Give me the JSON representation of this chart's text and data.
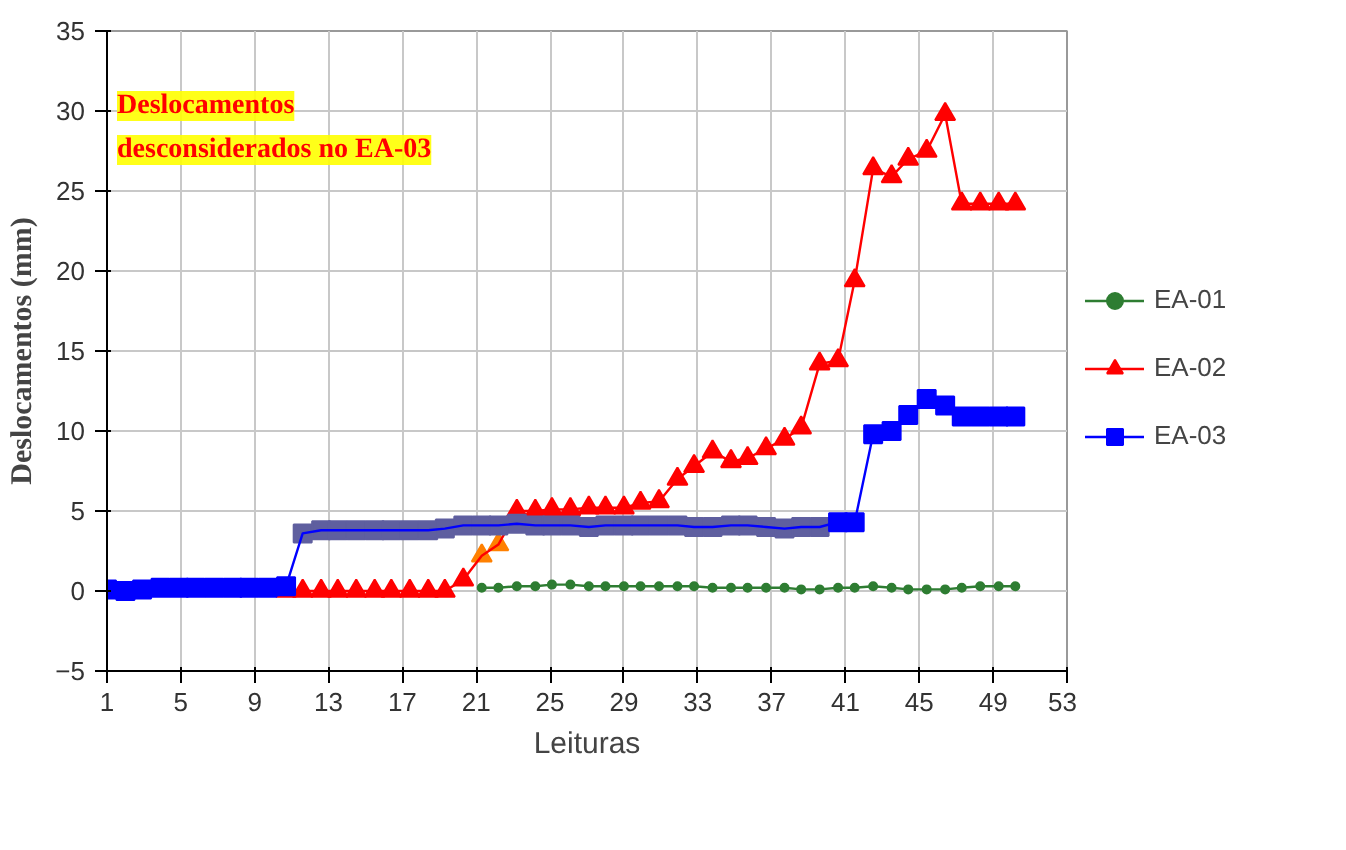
{
  "chart_data": {
    "type": "line",
    "xlabel": "Leituras",
    "ylabel": "Deslocamentos (mm)",
    "annotations": [
      "Deslocamentos desconsiderados no EA-03"
    ],
    "x": [
      1,
      2,
      2.9,
      3.9,
      4.9,
      5.8,
      6.8,
      7.8,
      8.7,
      9.7,
      10.7,
      11.6,
      12.6,
      13.5,
      14.5,
      15.5,
      16.4,
      17.4,
      18.4,
      19.3,
      20.3,
      21.3,
      22.2,
      23.2,
      24.2,
      25.1,
      26.1,
      27.1,
      28,
      29,
      29.9,
      30.9,
      31.9,
      32.8,
      33.8,
      34.8,
      35.7,
      36.7,
      37.7,
      38.6,
      39.6,
      40.6,
      41.5,
      42.5,
      43.5,
      44.4,
      45.4,
      46.4,
      47.3,
      48.3,
      49.3,
      50.2
    ],
    "series": [
      {
        "name": "EA-01",
        "color": "#2e7d32",
        "marker": "circle",
        "values": [
          null,
          null,
          null,
          null,
          null,
          null,
          null,
          null,
          null,
          null,
          null,
          null,
          null,
          null,
          null,
          null,
          null,
          null,
          null,
          null,
          null,
          0.2,
          0.2,
          0.3,
          0.3,
          0.4,
          0.4,
          0.3,
          0.3,
          0.3,
          0.3,
          0.3,
          0.3,
          0.3,
          0.2,
          0.2,
          0.2,
          0.2,
          0.2,
          0.1,
          0.1,
          0.2,
          0.2,
          0.3,
          0.2,
          0.1,
          0.1,
          0.1,
          0.2,
          0.3,
          0.3,
          0.3
        ]
      },
      {
        "name": "EA-02",
        "color": "#ff0000",
        "marker": "triangle",
        "colors": [
          "#ff0000",
          "#ff0000",
          "#ff0000",
          "#ff0000",
          "#ff0000",
          "#ff0000",
          "#ff0000",
          "#ff0000",
          "#ff0000",
          "#ff0000",
          "#ff0000",
          "#ff0000",
          "#ff0000",
          "#ff0000",
          "#ff0000",
          "#ff0000",
          "#ff0000",
          "#ff0000",
          "#ff0000",
          "#ff0000",
          "#ff0000",
          "#ff8000",
          "#ff8000",
          "#ff0000",
          "#ff0000",
          "#ff0000",
          "#ff0000",
          "#ff0000",
          "#ff0000",
          "#ff0000",
          "#ff0000",
          "#ff0000",
          "#ff0000",
          "#ff0000",
          "#ff0000",
          "#ff0000",
          "#ff0000",
          "#ff0000",
          "#ff0000",
          "#ff0000",
          "#ff0000",
          "#ff0000",
          "#ff0000",
          "#ff0000",
          "#ff0000",
          "#ff0000",
          "#ff0000",
          "#ff0000",
          "#ff0000",
          "#ff0000",
          "#ff0000",
          "#ff0000"
        ],
        "values": [
          null,
          null,
          null,
          null,
          null,
          null,
          null,
          null,
          null,
          null,
          0,
          0,
          0,
          0,
          0,
          0,
          0,
          0,
          0,
          0,
          0.7,
          2.2,
          2.9,
          5.0,
          5.0,
          5.1,
          5.1,
          5.2,
          5.2,
          5.2,
          5.5,
          5.6,
          7.0,
          7.8,
          8.7,
          8.1,
          8.3,
          8.9,
          9.5,
          10.2,
          14.2,
          14.4,
          19.4,
          26.4,
          25.9,
          27.0,
          27.5,
          29.8,
          24.2,
          24.2,
          24.2,
          24.2
        ]
      },
      {
        "name": "EA-03",
        "color": "#0000ff",
        "marker": "square",
        "colors": [
          "#0000ff",
          "#0000ff",
          "#0000ff",
          "#0000ff",
          "#0000ff",
          "#0000ff",
          "#0000ff",
          "#0000ff",
          "#0000ff",
          "#0000ff",
          "#0000ff",
          "#5f5f9f",
          "#5f5f9f",
          "#5f5f9f",
          "#5f5f9f",
          "#5f5f9f",
          "#5f5f9f",
          "#5f5f9f",
          "#5f5f9f",
          "#5f5f9f",
          "#5f5f9f",
          "#5f5f9f",
          "#5f5f9f",
          "#5f5f9f",
          "#5f5f9f",
          "#5f5f9f",
          "#5f5f9f",
          "#5f5f9f",
          "#5f5f9f",
          "#5f5f9f",
          "#5f5f9f",
          "#5f5f9f",
          "#5f5f9f",
          "#5f5f9f",
          "#5f5f9f",
          "#5f5f9f",
          "#5f5f9f",
          "#5f5f9f",
          "#5f5f9f",
          "#5f5f9f",
          "#5f5f9f",
          "#0000ff",
          "#0000ff",
          "#0000ff",
          "#0000ff",
          "#0000ff",
          "#0000ff",
          "#0000ff",
          "#0000ff",
          "#0000ff",
          "#0000ff",
          "#0000ff"
        ],
        "values": [
          0.1,
          0,
          0.1,
          0.2,
          0.2,
          0.2,
          0.2,
          0.2,
          0.2,
          0.2,
          0.3,
          3.6,
          3.8,
          3.8,
          3.8,
          3.8,
          3.8,
          3.8,
          3.8,
          3.9,
          4.1,
          4.1,
          4.1,
          4.2,
          4.1,
          4.1,
          4.1,
          4.0,
          4.1,
          4.1,
          4.1,
          4.1,
          4.1,
          4.0,
          4.0,
          4.1,
          4.1,
          4.0,
          3.9,
          4.0,
          4.0,
          4.3,
          4.3,
          9.8,
          10.0,
          11.0,
          12.0,
          11.6,
          10.9,
          10.9,
          10.9,
          10.9
        ]
      }
    ],
    "xlim": [
      1,
      53
    ],
    "xticks": [
      1,
      5,
      9,
      13,
      17,
      21,
      25,
      29,
      33,
      37,
      41,
      45,
      49,
      53
    ],
    "ylim": [
      -5,
      35
    ],
    "yticks": [
      -5,
      0,
      5,
      10,
      15,
      20,
      25,
      30,
      35
    ],
    "grid": true,
    "legend": "right"
  }
}
